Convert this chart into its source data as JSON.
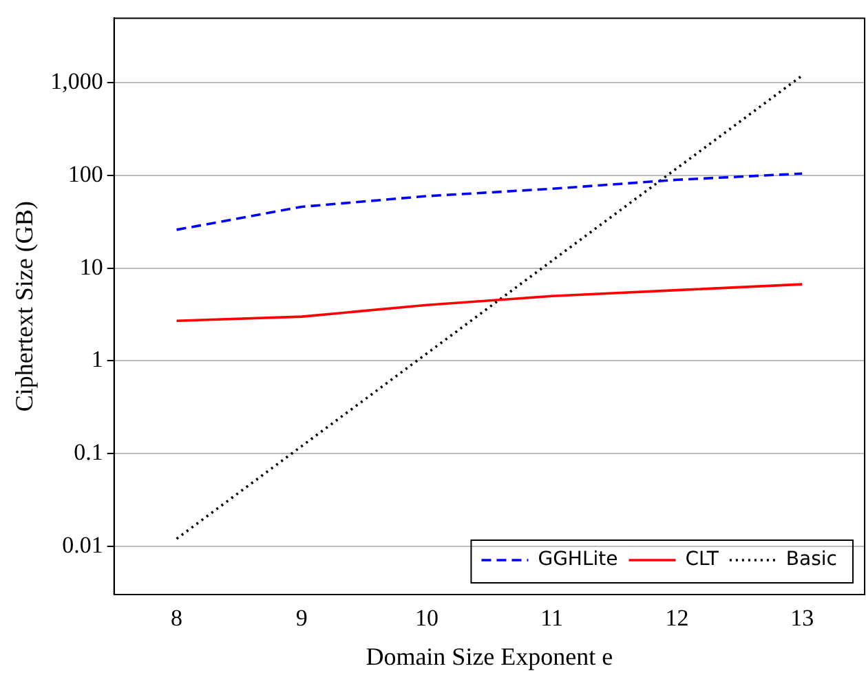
{
  "chart_data": {
    "type": "line",
    "xlabel": "Domain Size Exponent e",
    "ylabel": "Ciphertext Size (GB)",
    "x": [
      8,
      9,
      10,
      11,
      12,
      13
    ],
    "series": [
      {
        "name": "GGHLite",
        "color": "#0000ff",
        "line_style": "dashed",
        "values": [
          26,
          46,
          60,
          72,
          90,
          105
        ]
      },
      {
        "name": "CLT",
        "color": "#ff0000",
        "line_style": "solid",
        "values": [
          2.7,
          3.0,
          4.0,
          5.0,
          5.8,
          6.7
        ]
      },
      {
        "name": "Basic",
        "color": "#000000",
        "line_style": "dotted",
        "values": [
          0.012,
          0.12,
          1.2,
          12,
          120,
          1200
        ]
      }
    ],
    "log": "y",
    "xlim": [
      7.5,
      13.5
    ],
    "ylim": [
      0.003,
      5000
    ],
    "xticks": [
      8,
      9,
      10,
      11,
      12,
      13
    ],
    "yticks": [
      0.01,
      0.1,
      1,
      10,
      100,
      {
        "value": 1000,
        "label": "1,000"
      }
    ],
    "grid": "y",
    "legend": "bottom right",
    "marker": "none"
  }
}
